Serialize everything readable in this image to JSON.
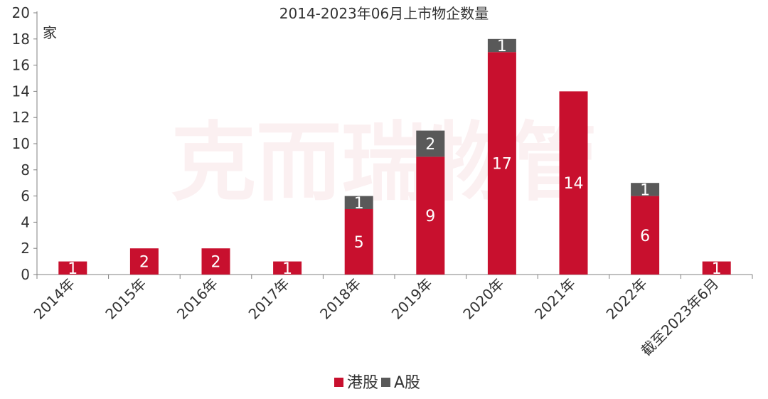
{
  "watermark_text": "克而瑞物管",
  "chart_data": {
    "type": "bar",
    "stacked": true,
    "title": "2014-2023年06月上市物企数量",
    "ylabel": "家",
    "xlabel": "",
    "ylim": [
      0,
      20
    ],
    "yticks": [
      0,
      2,
      4,
      6,
      8,
      10,
      12,
      14,
      16,
      18,
      20
    ],
    "categories": [
      "2014年",
      "2015年",
      "2016年",
      "2017年",
      "2018年",
      "2019年",
      "2020年",
      "2021年",
      "2022年",
      "截至2023年6月"
    ],
    "series": [
      {
        "name": "港股",
        "color": "#c8102e",
        "values": [
          1,
          2,
          2,
          1,
          5,
          9,
          17,
          14,
          6,
          1
        ]
      },
      {
        "name": "A股",
        "color": "#595959",
        "values": [
          0,
          0,
          0,
          0,
          1,
          2,
          1,
          0,
          1,
          0
        ]
      }
    ],
    "legend_position": "bottom-center",
    "grid": false
  }
}
